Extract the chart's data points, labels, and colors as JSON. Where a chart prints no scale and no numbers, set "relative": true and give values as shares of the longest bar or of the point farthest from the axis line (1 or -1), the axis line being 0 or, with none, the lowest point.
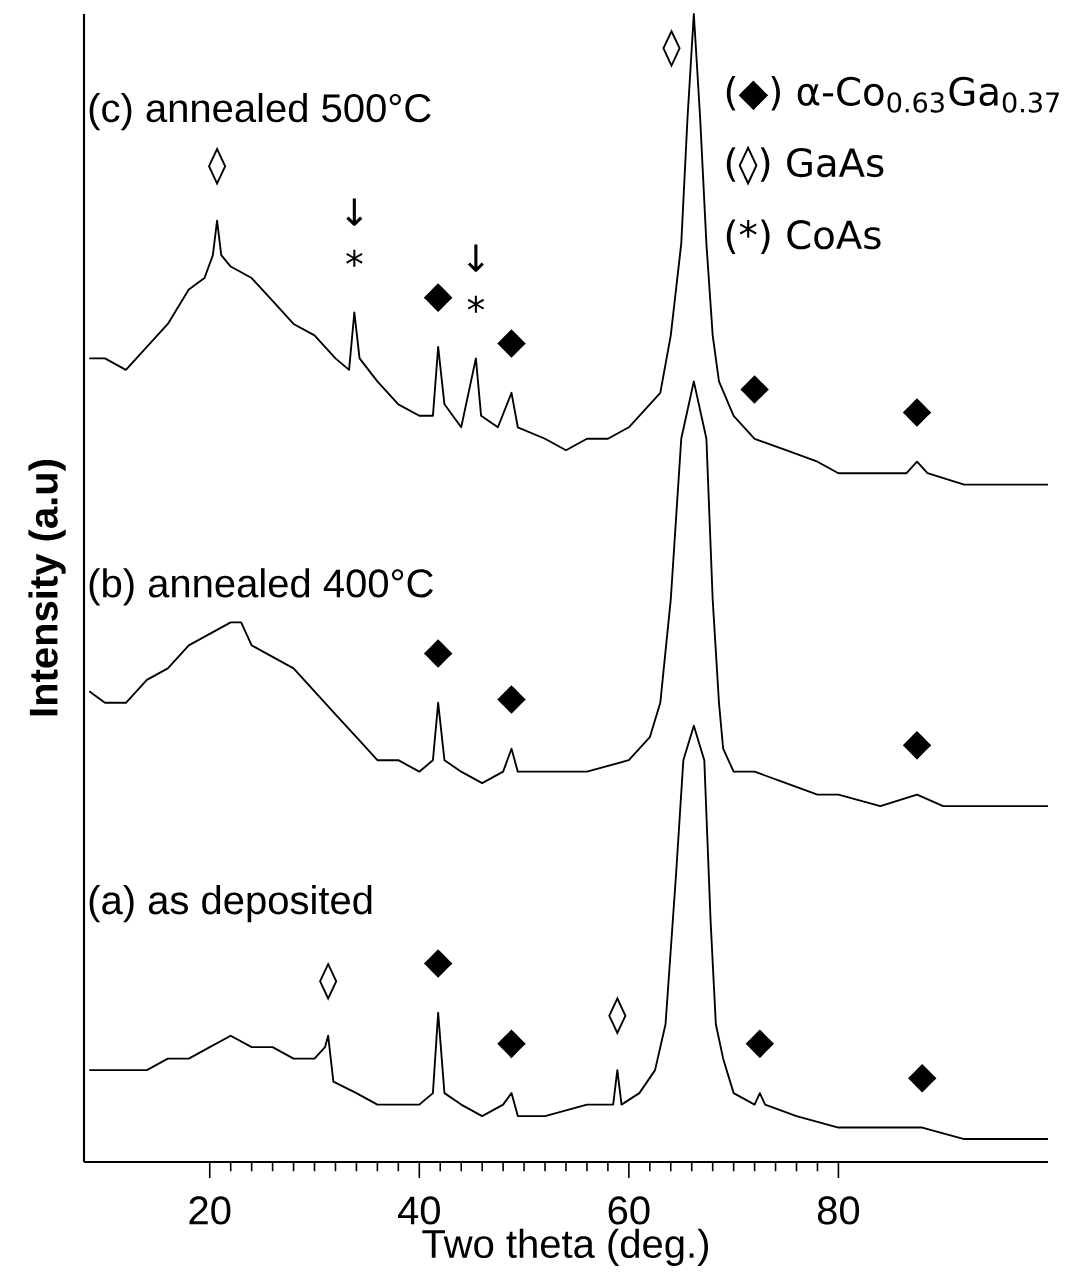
{
  "chart_data": {
    "type": "line",
    "relative": true,
    "xlabel": "Two theta  (deg.)",
    "ylabel": "Intensity  (a.u)",
    "xlim": [
      8,
      100
    ],
    "xticks": [
      20,
      40,
      60,
      80
    ],
    "tick_labels": "x",
    "marker": "none",
    "line_style": "solid",
    "series": [
      {
        "name": "(c)  annealed  500°C",
        "color": "#000000",
        "x": [
          8.5,
          10,
          12,
          14,
          16,
          18,
          19.5,
          20.3,
          20.7,
          21.1,
          22,
          24,
          26,
          28,
          30,
          32,
          33.3,
          33.8,
          34.3,
          36,
          38,
          40,
          41.3,
          41.8,
          42.4,
          44,
          45.4,
          45.9,
          47.5,
          48.8,
          49.4,
          52,
          54,
          56,
          58,
          60,
          62,
          63,
          64,
          65,
          65.6,
          66.2,
          66.8,
          67.4,
          68,
          68.6,
          70,
          72,
          75,
          78,
          80,
          84,
          86.5,
          87.5,
          88.5,
          92,
          96,
          100
        ],
        "values": [
          0.7,
          0.7,
          0.69,
          0.71,
          0.73,
          0.76,
          0.77,
          0.79,
          0.82,
          0.79,
          0.78,
          0.77,
          0.75,
          0.73,
          0.72,
          0.7,
          0.69,
          0.74,
          0.7,
          0.68,
          0.66,
          0.65,
          0.65,
          0.71,
          0.66,
          0.64,
          0.7,
          0.65,
          0.64,
          0.67,
          0.64,
          0.63,
          0.62,
          0.63,
          0.63,
          0.64,
          0.66,
          0.67,
          0.72,
          0.8,
          0.91,
          1,
          0.91,
          0.8,
          0.72,
          0.68,
          0.65,
          0.63,
          0.62,
          0.61,
          0.6,
          0.6,
          0.6,
          0.61,
          0.6,
          0.59,
          0.59,
          0.59
        ]
      },
      {
        "name": "(b)  annealed  400°C",
        "color": "#000000",
        "x": [
          8.5,
          10,
          12,
          14,
          16,
          18,
          20,
          22,
          23,
          24,
          26,
          28,
          30,
          32,
          34,
          36,
          38,
          40,
          41.3,
          41.8,
          42.4,
          44,
          46,
          48,
          48.8,
          49.4,
          52,
          56,
          60,
          62,
          63,
          64,
          65,
          66.2,
          67.4,
          68,
          68.6,
          69,
          70,
          72,
          75,
          78,
          80,
          84,
          87.5,
          90,
          95,
          100
        ],
        "values": [
          0.41,
          0.4,
          0.4,
          0.42,
          0.43,
          0.45,
          0.46,
          0.47,
          0.47,
          0.45,
          0.44,
          0.43,
          0.41,
          0.39,
          0.37,
          0.35,
          0.35,
          0.34,
          0.35,
          0.4,
          0.35,
          0.34,
          0.33,
          0.34,
          0.36,
          0.34,
          0.34,
          0.34,
          0.35,
          0.37,
          0.4,
          0.49,
          0.63,
          0.68,
          0.63,
          0.49,
          0.4,
          0.36,
          0.34,
          0.34,
          0.33,
          0.32,
          0.32,
          0.31,
          0.32,
          0.31,
          0.31,
          0.31
        ]
      },
      {
        "name": "(a)  as  deposited",
        "color": "#000000",
        "x": [
          8.5,
          10,
          12,
          14,
          16,
          18,
          20,
          22,
          24,
          26,
          28,
          30,
          31,
          31.3,
          31.8,
          34,
          36,
          38,
          40,
          41.3,
          41.8,
          42.4,
          44,
          46,
          48,
          48.8,
          49.4,
          52,
          56,
          58.5,
          58.9,
          59.3,
          61,
          62.5,
          63.5,
          64.5,
          65.2,
          66.2,
          67.2,
          67.8,
          68.3,
          69,
          70,
          72,
          72.5,
          73,
          76,
          80,
          84,
          88,
          92,
          96,
          100
        ],
        "values": [
          0.08,
          0.08,
          0.08,
          0.08,
          0.09,
          0.09,
          0.1,
          0.11,
          0.1,
          0.1,
          0.09,
          0.09,
          0.1,
          0.11,
          0.07,
          0.06,
          0.05,
          0.05,
          0.05,
          0.06,
          0.13,
          0.06,
          0.05,
          0.04,
          0.05,
          0.06,
          0.04,
          0.04,
          0.05,
          0.05,
          0.08,
          0.05,
          0.06,
          0.08,
          0.12,
          0.25,
          0.35,
          0.38,
          0.35,
          0.21,
          0.12,
          0.09,
          0.06,
          0.05,
          0.06,
          0.05,
          0.04,
          0.03,
          0.03,
          0.03,
          0.02,
          0.02,
          0.02
        ]
      }
    ],
    "annotations": [
      "(◆) α-Co$_{0.63}$Ga$_{0.37}$",
      "(◊)  GaAs",
      "(*)   CoAs",
      {
        "text": "◊",
        "x": 20.7,
        "y": 0.82
      },
      {
        "text": "*",
        "x": 33.8,
        "y": 0.74
      },
      {
        "text": "↓",
        "x": 33.8,
        "y": 0.74
      },
      {
        "text": "◆",
        "x": 41.8,
        "y": 0.71
      },
      {
        "text": "*",
        "x": 45.4,
        "y": 0.7
      },
      {
        "text": "↓",
        "x": 45.4,
        "y": 0.7
      },
      {
        "text": "◆",
        "x": 48.8,
        "y": 0.67
      },
      {
        "text": "◊",
        "x": 66.2,
        "y": 1
      },
      {
        "text": "◆",
        "x": 72,
        "y": 0.63
      },
      {
        "text": "◆",
        "x": 87.5,
        "y": 0.61
      },
      {
        "text": "◆",
        "x": 41.8,
        "y": 0.4
      },
      {
        "text": "◆",
        "x": 48.8,
        "y": 0.36
      },
      {
        "text": "◆",
        "x": 87.5,
        "y": 0.32
      },
      {
        "text": "◊",
        "x": 31.3,
        "y": 0.11
      },
      {
        "text": "◆",
        "x": 41.8,
        "y": 0.13
      },
      {
        "text": "◆",
        "x": 48.8,
        "y": 0.06
      },
      {
        "text": "◊",
        "x": 58.9,
        "y": 0.08
      },
      {
        "text": "◆",
        "x": 72.5,
        "y": 0.06
      },
      {
        "text": "◆",
        "x": 88,
        "y": 0.03
      }
    ]
  }
}
